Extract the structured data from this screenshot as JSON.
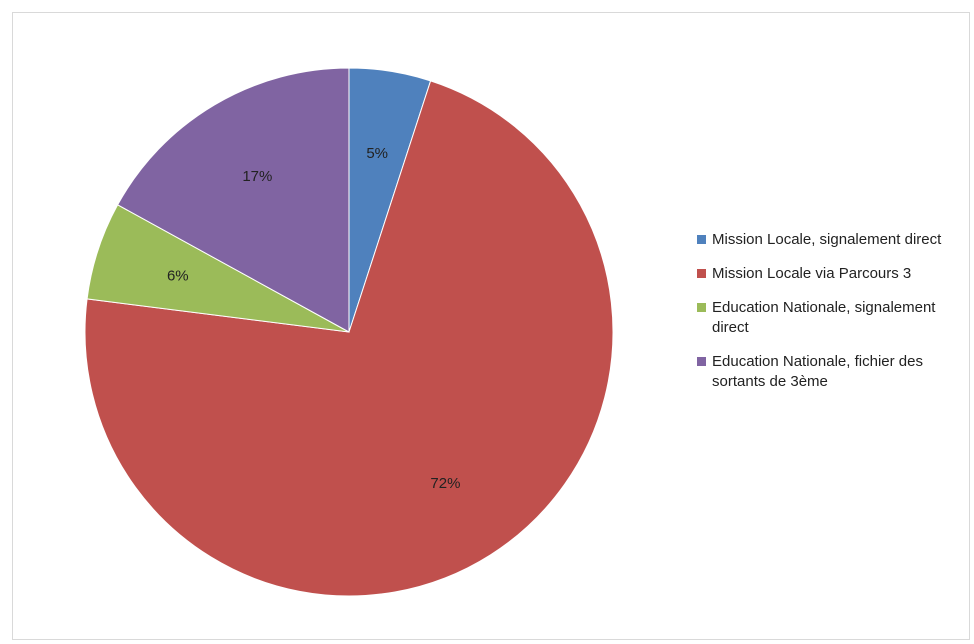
{
  "chart_data": {
    "type": "pie",
    "title": "",
    "start_angle_deg": 0,
    "direction": "clockwise",
    "legend_position": "right",
    "slices": [
      {
        "name": "Mission Locale, signalement direct",
        "value": 5,
        "label": "5%",
        "color": "#4f81bd"
      },
      {
        "name": "Mission Locale via Parcours 3",
        "value": 72,
        "label": "72%",
        "color": "#c0504d"
      },
      {
        "name": "Education Nationale, signalement direct",
        "value": 6,
        "label": "6%",
        "color": "#9bbb59"
      },
      {
        "name": "Education Nationale, fichier des sortants de 3ème",
        "value": 17,
        "label": "17%",
        "color": "#8064a2"
      }
    ]
  }
}
